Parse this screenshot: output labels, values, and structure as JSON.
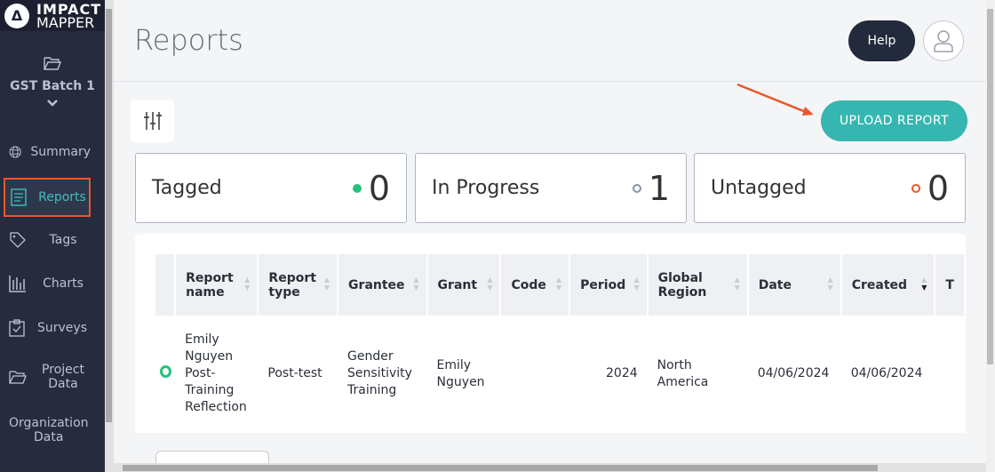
{
  "logo": {
    "line1": "IMPACT",
    "line2": "MAPPER"
  },
  "sidebar": {
    "batch": "GST Batch 1",
    "items": [
      {
        "label": "Summary",
        "icon": "globe-icon"
      },
      {
        "label": "Reports",
        "icon": "document-icon",
        "active": true
      },
      {
        "label": "Tags",
        "icon": "tag-icon"
      },
      {
        "label": "Charts",
        "icon": "bar-chart-icon"
      },
      {
        "label": "Surveys",
        "icon": "clipboard-check-icon"
      },
      {
        "label": "Project Data",
        "icon": "folder-icon"
      },
      {
        "label": "Organization Data",
        "icon": "database-icon"
      }
    ]
  },
  "header": {
    "title": "Reports",
    "help": "Help"
  },
  "toolbar": {
    "upload": "UPLOAD REPORT"
  },
  "cards": [
    {
      "label": "Tagged",
      "count": "0",
      "color": "#27c07a"
    },
    {
      "label": "In Progress",
      "count": "1",
      "color": "#8a93a3"
    },
    {
      "label": "Untagged",
      "count": "0",
      "color": "#e8582c"
    }
  ],
  "table": {
    "columns": [
      "Report name",
      "Report type",
      "Grantee",
      "Grant",
      "Code",
      "Period",
      "Global Region",
      "Date",
      "Created",
      "T"
    ],
    "rows": [
      {
        "status": "in-progress",
        "cells": [
          "Emily Nguyen Post-Training Reflection",
          "Post-test",
          "Gender Sensitivity Training",
          "Emily Nguyen",
          "",
          "2024",
          "North America",
          "04/06/2024",
          "04/06/2024"
        ]
      }
    ]
  }
}
